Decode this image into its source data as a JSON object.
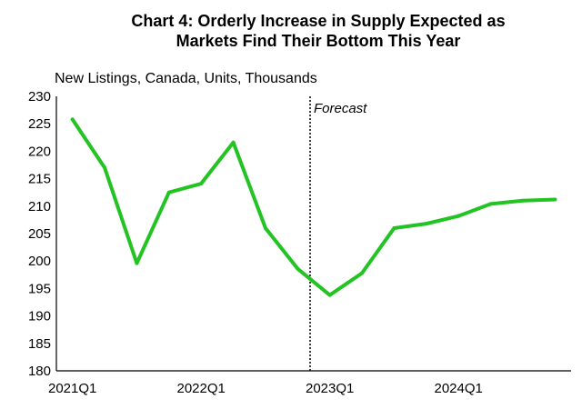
{
  "chart_data": {
    "type": "line",
    "title": "Chart 4: Orderly Increase in Supply Expected as Markets Find Their Bottom This Year",
    "title_lines": [
      "Chart 4: Orderly Increase in Supply Expected as",
      "Markets Find Their Bottom This Year"
    ],
    "ylabel": "New Listings, Canada, Units, Thousands",
    "xlabel": "",
    "ylim": [
      180,
      230
    ],
    "yticks": [
      180,
      185,
      190,
      195,
      200,
      205,
      210,
      215,
      220,
      225,
      230
    ],
    "xtick_labels": [
      "2021Q1",
      "2022Q1",
      "2023Q1",
      "2024Q1"
    ],
    "x": [
      "2021Q1",
      "2021Q2",
      "2021Q3",
      "2021Q4",
      "2022Q1",
      "2022Q2",
      "2022Q3",
      "2022Q4",
      "2023Q1",
      "2023Q2",
      "2023Q3",
      "2023Q4",
      "2024Q1",
      "2024Q2",
      "2024Q3",
      "2024Q4"
    ],
    "series": [
      {
        "values": [
          225.8,
          217.0,
          199.6,
          212.5,
          214.1,
          221.6,
          206.0,
          198.6,
          193.8,
          197.8,
          206.0,
          206.8,
          208.2,
          210.4,
          211.0,
          211.2
        ],
        "color": "#22c322"
      }
    ],
    "annotation": {
      "text": "Forecast",
      "at": "2022Q4"
    },
    "grid": false,
    "legend": "none"
  }
}
